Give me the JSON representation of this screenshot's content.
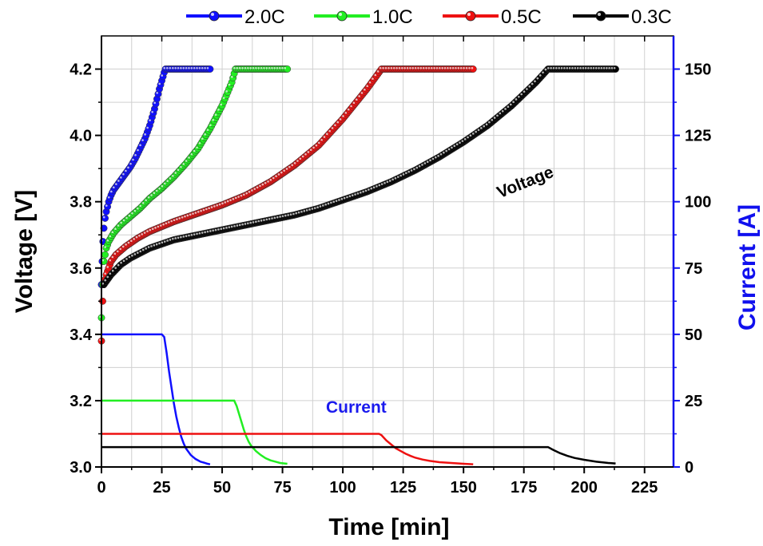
{
  "chart_data": {
    "type": "line",
    "xlabel": "Time [min]",
    "ylabel": "Voltage [V]",
    "y2label": "Current [A]",
    "xlim": [
      0,
      237
    ],
    "ylim": [
      3.0,
      4.3
    ],
    "y2lim": [
      0,
      162.5
    ],
    "xticks": [
      0,
      25,
      50,
      75,
      100,
      125,
      150,
      175,
      200,
      225
    ],
    "yticks": [
      3.0,
      3.2,
      3.4,
      3.6,
      3.8,
      4.0,
      4.2
    ],
    "y2ticks": [
      0,
      25,
      50,
      75,
      100,
      125,
      150
    ],
    "grid": true,
    "legend_position": "top",
    "annotations": [
      {
        "text": "Voltage",
        "x": 165,
        "y": 3.81,
        "color": "#000000"
      },
      {
        "text": "Current",
        "x": 93,
        "y": 3.164,
        "color": "#1a1aee"
      }
    ],
    "series": [
      {
        "name": "2.0C",
        "color": "#1010ff",
        "voltage": {
          "x": [
            0,
            0.3,
            0.6,
            1,
            1.5,
            2,
            3,
            4,
            5,
            6,
            8,
            10,
            12,
            14,
            16,
            18,
            20,
            22,
            24,
            26,
            26.5,
            30,
            35,
            40,
            45
          ],
          "y": [
            3.55,
            3.62,
            3.68,
            3.72,
            3.75,
            3.77,
            3.8,
            3.82,
            3.835,
            3.845,
            3.865,
            3.885,
            3.905,
            3.93,
            3.96,
            3.99,
            4.03,
            4.08,
            4.14,
            4.19,
            4.2,
            4.2,
            4.2,
            4.2,
            4.2
          ]
        },
        "current": {
          "x": [
            0,
            5,
            10,
            15,
            20,
            25,
            26,
            27,
            28,
            29,
            30,
            31,
            32,
            33,
            34,
            35,
            37,
            39,
            41,
            43,
            44,
            45
          ],
          "y": [
            50,
            50,
            50,
            50,
            50,
            50,
            49,
            43,
            36,
            30,
            24,
            19,
            15,
            11.5,
            9,
            7,
            4.5,
            3,
            2,
            1.5,
            1.2,
            1
          ]
        }
      },
      {
        "name": "1.0C",
        "color": "#22ee22",
        "voltage": {
          "x": [
            0,
            0.5,
            1,
            2,
            3,
            5,
            8,
            12,
            16,
            20,
            25,
            30,
            35,
            40,
            45,
            50,
            54,
            55.5,
            60,
            65,
            70,
            77
          ],
          "y": [
            3.45,
            3.55,
            3.62,
            3.66,
            3.68,
            3.705,
            3.73,
            3.755,
            3.78,
            3.81,
            3.84,
            3.875,
            3.915,
            3.96,
            4.02,
            4.09,
            4.16,
            4.2,
            4.2,
            4.2,
            4.2,
            4.2
          ]
        },
        "current": {
          "x": [
            0,
            10,
            20,
            30,
            40,
            50,
            55,
            56,
            57,
            58,
            59,
            60,
            61,
            62,
            64,
            66,
            68,
            70,
            72,
            74,
            77
          ],
          "y": [
            25,
            25,
            25,
            25,
            25,
            25,
            25,
            23,
            20,
            17,
            14,
            11.5,
            9.5,
            8,
            6,
            4.5,
            3.3,
            2.5,
            2,
            1.5,
            1.2
          ]
        }
      },
      {
        "name": "0.5C",
        "color": "#ee1111",
        "voltage": {
          "x": [
            0,
            0.5,
            1,
            2,
            4,
            6,
            10,
            15,
            20,
            30,
            40,
            50,
            60,
            70,
            80,
            90,
            100,
            110,
            115,
            116,
            120,
            130,
            140,
            150,
            154
          ],
          "y": [
            3.38,
            3.5,
            3.55,
            3.58,
            3.62,
            3.64,
            3.665,
            3.69,
            3.71,
            3.74,
            3.765,
            3.79,
            3.82,
            3.86,
            3.91,
            3.97,
            4.05,
            4.14,
            4.19,
            4.2,
            4.2,
            4.2,
            4.2,
            4.2,
            4.2
          ]
        },
        "current": {
          "x": [
            0,
            20,
            40,
            60,
            80,
            100,
            115,
            116,
            118,
            120,
            122,
            124,
            126,
            128,
            130,
            133,
            136,
            140,
            145,
            150,
            154
          ],
          "y": [
            12.5,
            12.5,
            12.5,
            12.5,
            12.5,
            12.5,
            12.5,
            12,
            10,
            8.5,
            7,
            6,
            5,
            4.2,
            3.5,
            2.8,
            2.3,
            1.8,
            1.5,
            1.2,
            1
          ]
        }
      },
      {
        "name": "0.3C",
        "color": "#000000",
        "voltage": {
          "x": [
            1,
            2,
            4,
            8,
            12,
            16,
            20,
            30,
            40,
            50,
            60,
            70,
            80,
            90,
            100,
            110,
            120,
            130,
            140,
            150,
            160,
            170,
            180,
            185,
            190,
            200,
            213
          ],
          "y": [
            3.55,
            3.56,
            3.58,
            3.61,
            3.63,
            3.645,
            3.66,
            3.685,
            3.7,
            3.715,
            3.73,
            3.745,
            3.76,
            3.78,
            3.805,
            3.83,
            3.86,
            3.895,
            3.935,
            3.98,
            4.03,
            4.09,
            4.16,
            4.2,
            4.2,
            4.2,
            4.2
          ]
        },
        "current": {
          "x": [
            0,
            30,
            60,
            90,
            120,
            150,
            180,
            185,
            187,
            190,
            193,
            196,
            200,
            205,
            210,
            213
          ],
          "y": [
            7.5,
            7.5,
            7.5,
            7.5,
            7.5,
            7.5,
            7.5,
            7.5,
            6.5,
            5.2,
            4.2,
            3.4,
            2.7,
            2,
            1.5,
            1.3
          ]
        }
      }
    ]
  }
}
